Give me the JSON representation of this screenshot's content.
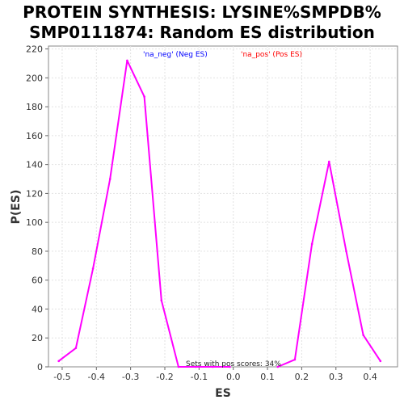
{
  "chart_data": {
    "type": "line",
    "title_line1": "PROTEIN SYNTHESIS: LYSINE%SMPDB%",
    "title_line2": "SMP0111874: Random ES distribution",
    "xlabel": "ES",
    "ylabel": "P(ES)",
    "xlim": [
      -0.54,
      0.48
    ],
    "ylim": [
      0,
      222
    ],
    "xticks": [
      "-0.5",
      "-0.4",
      "-0.3",
      "-0.2",
      "-0.1",
      "0.0",
      "0.1",
      "0.2",
      "0.3",
      "0.4"
    ],
    "yticks": [
      "0",
      "20",
      "40",
      "60",
      "80",
      "100",
      "120",
      "140",
      "160",
      "180",
      "200",
      "220"
    ],
    "grid": true,
    "legend_position": "top-center",
    "legend": [
      {
        "label": "'na_neg' (Neg ES)",
        "color": "#0000ff"
      },
      {
        "label": "'na_pos' (Pos ES)",
        "color": "#ff0000"
      }
    ],
    "annotation": "Sets with pos scores: 34%",
    "line_color": "#ff00ff",
    "series": [
      {
        "x": [
          -0.51,
          -0.46,
          -0.41,
          -0.36,
          -0.31,
          -0.26,
          -0.21,
          -0.16,
          -0.11,
          -0.06,
          -0.01
        ],
        "y": [
          4,
          13,
          68,
          130,
          212,
          187,
          46,
          0,
          0,
          0,
          0
        ]
      },
      {
        "x": [
          0.13,
          0.18,
          0.23,
          0.28,
          0.33,
          0.38,
          0.43
        ],
        "y": [
          0,
          5,
          85,
          142,
          80,
          22,
          4
        ]
      }
    ]
  }
}
